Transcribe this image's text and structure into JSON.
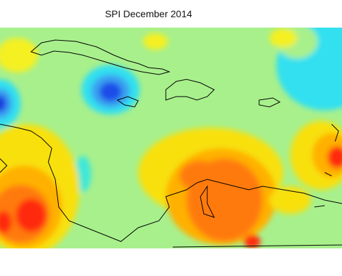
{
  "title": "SPI December 2014"
}
